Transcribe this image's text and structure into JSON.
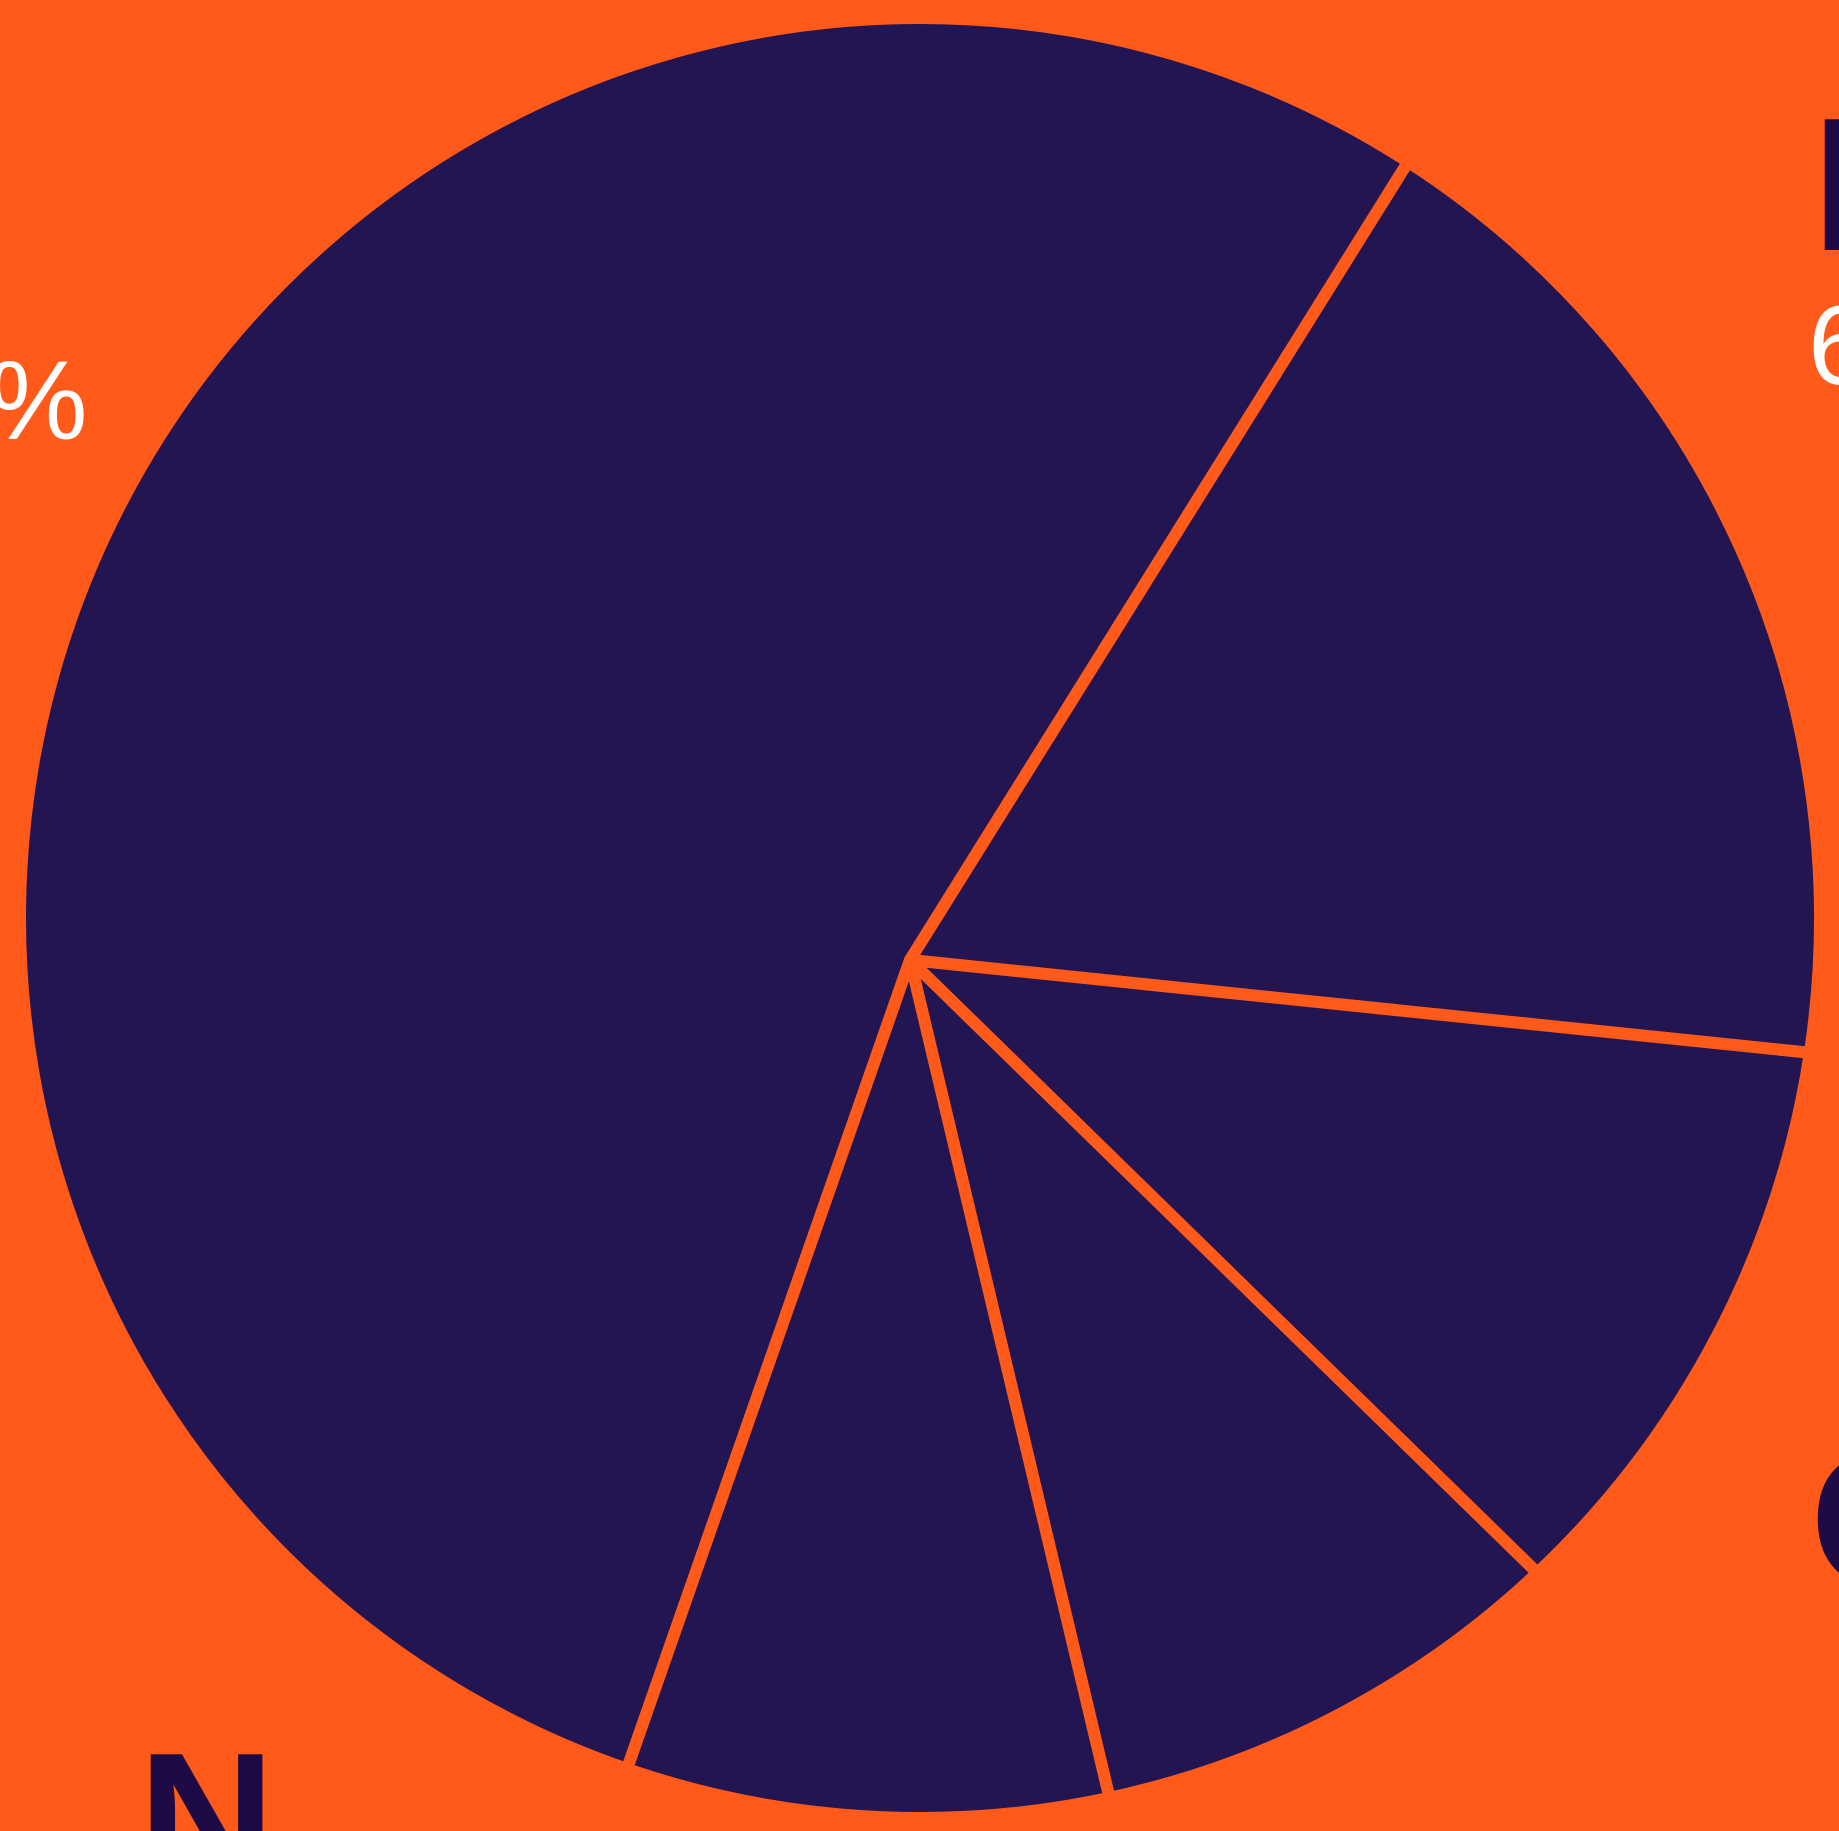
{
  "colors": {
    "background": "#FF5A19",
    "slice_fill": "#231452",
    "slice_stroke": "#FF5A19",
    "percent_label": "#FFFFFF",
    "category_label": "#1E0A45"
  },
  "chart_data": {
    "type": "pie",
    "title": "",
    "slices": [
      {
        "value": 56,
        "label": "",
        "percent_text": "6"
      },
      {
        "value": 19,
        "label": "N",
        "percent_text": ""
      },
      {
        "value": 11,
        "label": "",
        "percent_text": ""
      },
      {
        "value": 9,
        "label": "",
        "percent_text": ""
      },
      {
        "value": 9,
        "label": "",
        "percent_text": "%"
      }
    ],
    "partial_text": {
      "top_right_category": "I",
      "right_category": "C"
    }
  }
}
